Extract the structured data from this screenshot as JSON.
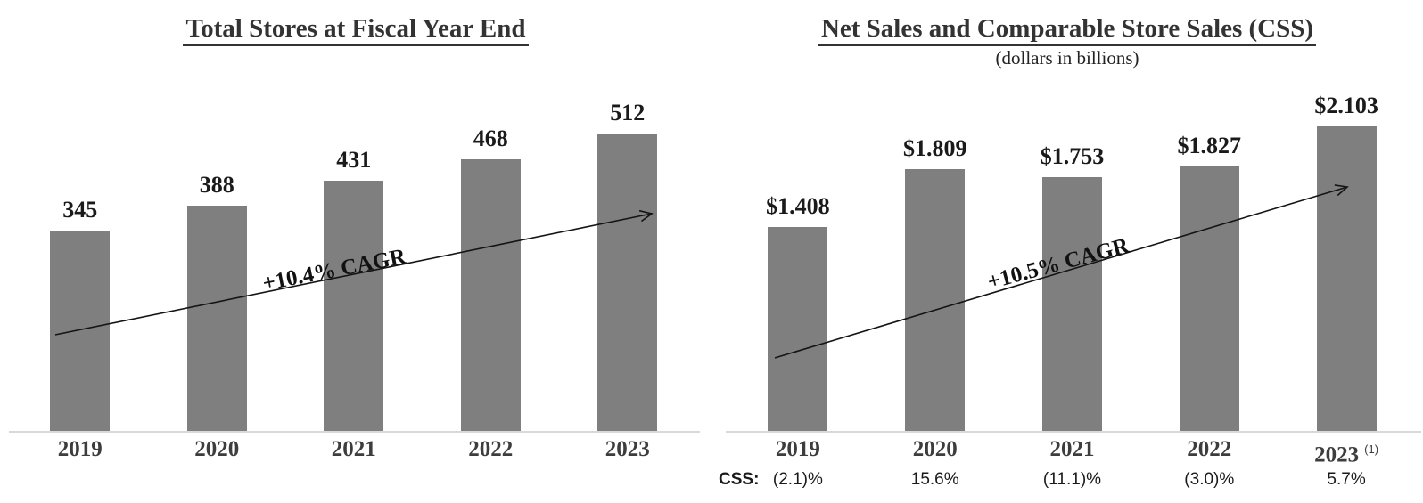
{
  "page": {
    "background": "#ffffff"
  },
  "chart_data": [
    {
      "type": "bar",
      "title": "Total Stores at Fiscal Year End",
      "categories": [
        "2019",
        "2020",
        "2021",
        "2022",
        "2023"
      ],
      "values": [
        345,
        388,
        431,
        468,
        512
      ],
      "value_labels": [
        "345",
        "388",
        "431",
        "468",
        "512"
      ],
      "annotation": "+10.4% CAGR",
      "bar_color": "#7f7f7f",
      "axis_color": "#d9d9d9",
      "xlabel": "",
      "ylabel": "",
      "ylim": [
        0,
        512
      ],
      "grid": false,
      "legend": "none"
    },
    {
      "type": "bar",
      "title": "Net Sales and Comparable Store Sales (CSS)",
      "subtitle": "(dollars in billions)",
      "categories": [
        "2019",
        "2020",
        "2021",
        "2022",
        "2023"
      ],
      "category_superscripts": [
        "",
        "",
        "",
        "",
        "(1)"
      ],
      "values": [
        1.408,
        1.809,
        1.753,
        1.827,
        2.103
      ],
      "value_labels": [
        "$1.408",
        "$1.809",
        "$1.753",
        "$1.827",
        "$2.103"
      ],
      "annotation": "+10.5% CAGR",
      "css_row": {
        "label": "CSS:",
        "values": [
          "(2.1)%",
          "15.6%",
          "(11.1)%",
          "(3.0)%",
          "5.7%"
        ]
      },
      "bar_color": "#7f7f7f",
      "axis_color": "#d9d9d9",
      "xlabel": "",
      "ylabel": "",
      "ylim": [
        0,
        2.103
      ],
      "grid": false,
      "legend": "none"
    }
  ]
}
